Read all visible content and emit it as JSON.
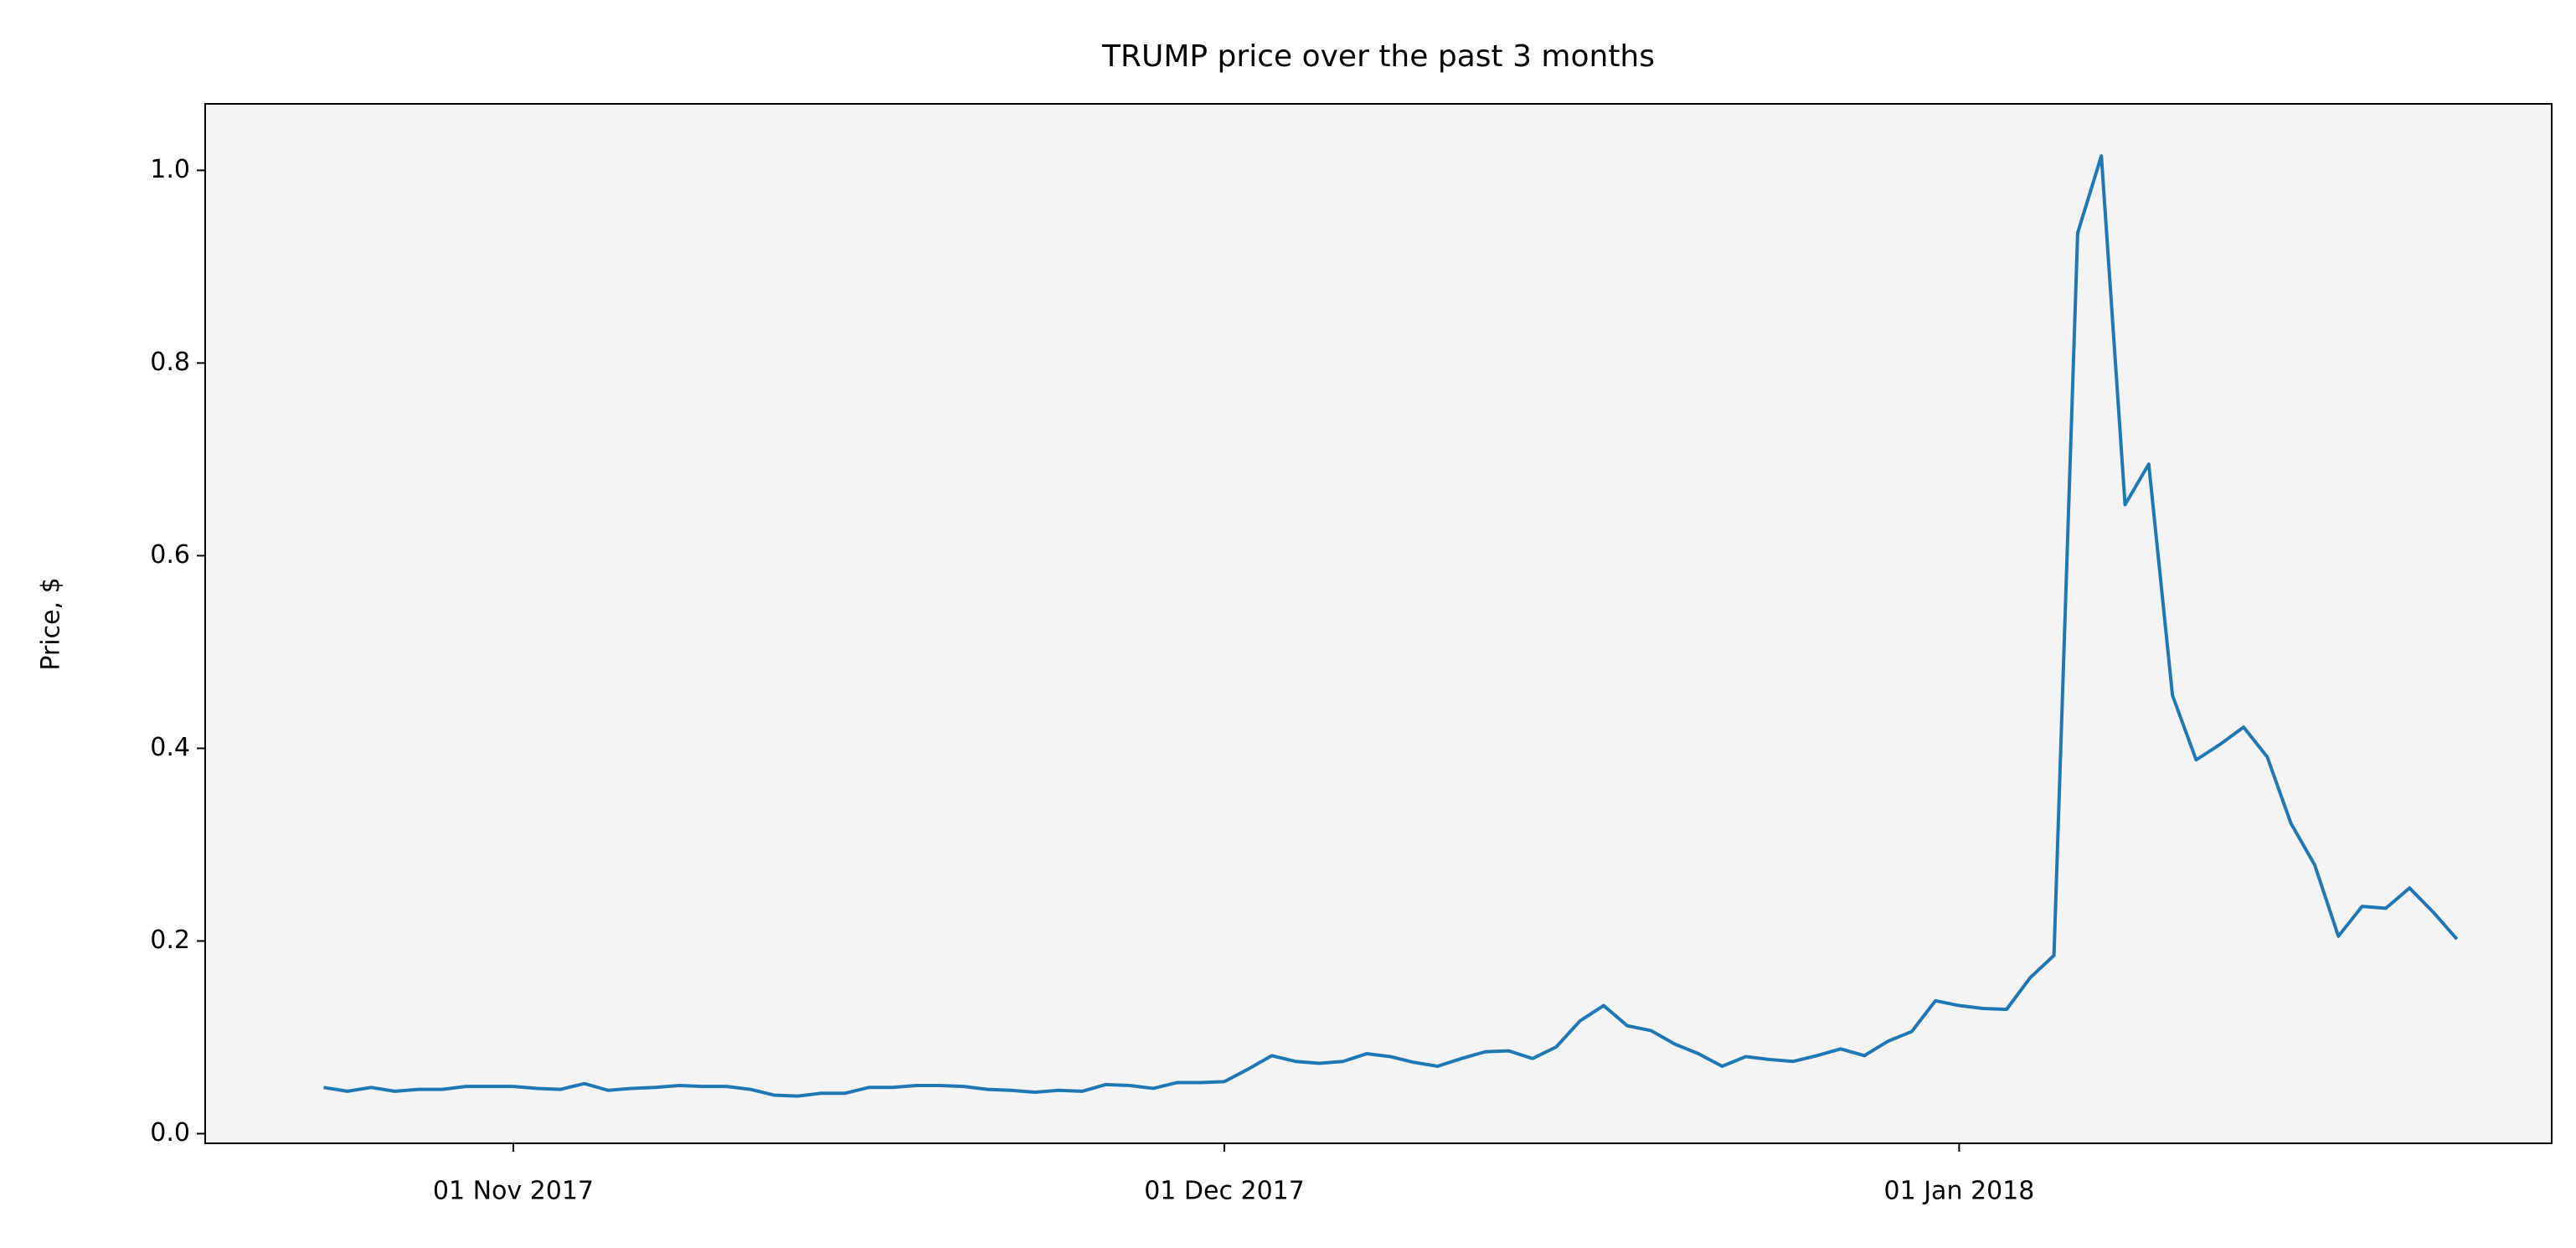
{
  "chart_data": {
    "type": "line",
    "title": "TRUMP price over the past 3 months",
    "ylabel": "Price, $",
    "x": [
      "2017-10-24",
      "2017-10-25",
      "2017-10-26",
      "2017-10-27",
      "2017-10-28",
      "2017-10-29",
      "2017-10-30",
      "2017-10-31",
      "2017-11-01",
      "2017-11-02",
      "2017-11-03",
      "2017-11-04",
      "2017-11-05",
      "2017-11-06",
      "2017-11-07",
      "2017-11-08",
      "2017-11-09",
      "2017-11-10",
      "2017-11-11",
      "2017-11-12",
      "2017-11-13",
      "2017-11-14",
      "2017-11-15",
      "2017-11-16",
      "2017-11-17",
      "2017-11-18",
      "2017-11-19",
      "2017-11-20",
      "2017-11-21",
      "2017-11-22",
      "2017-11-23",
      "2017-11-24",
      "2017-11-25",
      "2017-11-26",
      "2017-11-27",
      "2017-11-28",
      "2017-11-29",
      "2017-11-30",
      "2017-12-01",
      "2017-12-02",
      "2017-12-03",
      "2017-12-04",
      "2017-12-05",
      "2017-12-06",
      "2017-12-07",
      "2017-12-08",
      "2017-12-09",
      "2017-12-10",
      "2017-12-11",
      "2017-12-12",
      "2017-12-13",
      "2017-12-14",
      "2017-12-15",
      "2017-12-16",
      "2017-12-17",
      "2017-12-18",
      "2017-12-19",
      "2017-12-20",
      "2017-12-21",
      "2017-12-22",
      "2017-12-23",
      "2017-12-24",
      "2017-12-25",
      "2017-12-26",
      "2017-12-27",
      "2017-12-28",
      "2017-12-29",
      "2017-12-30",
      "2017-12-31",
      "2018-01-01",
      "2018-01-02",
      "2018-01-03",
      "2018-01-04",
      "2018-01-05",
      "2018-01-06",
      "2018-01-07",
      "2018-01-08",
      "2018-01-09",
      "2018-01-10",
      "2018-01-11",
      "2018-01-12",
      "2018-01-13",
      "2018-01-14",
      "2018-01-15",
      "2018-01-16",
      "2018-01-17",
      "2018-01-18",
      "2018-01-19",
      "2018-01-20",
      "2018-01-21",
      "2018-01-22"
    ],
    "series": [
      {
        "name": "TRUMP",
        "color": "#1f77b4",
        "values": [
          0.048,
          0.044,
          0.048,
          0.044,
          0.046,
          0.046,
          0.049,
          0.049,
          0.049,
          0.047,
          0.046,
          0.052,
          0.045,
          0.047,
          0.048,
          0.05,
          0.049,
          0.049,
          0.046,
          0.04,
          0.039,
          0.042,
          0.042,
          0.048,
          0.048,
          0.05,
          0.05,
          0.049,
          0.046,
          0.045,
          0.043,
          0.045,
          0.044,
          0.051,
          0.05,
          0.047,
          0.053,
          0.053,
          0.054,
          0.067,
          0.081,
          0.075,
          0.073,
          0.075,
          0.083,
          0.08,
          0.074,
          0.07,
          0.078,
          0.085,
          0.086,
          0.078,
          0.09,
          0.117,
          0.133,
          0.112,
          0.107,
          0.093,
          0.083,
          0.07,
          0.08,
          0.077,
          0.075,
          0.081,
          0.088,
          0.081,
          0.096,
          0.106,
          0.138,
          0.133,
          0.13,
          0.129,
          0.162,
          0.185,
          0.935,
          1.015,
          0.653,
          0.695,
          0.455,
          0.388,
          0.404,
          0.422,
          0.391,
          0.322,
          0.279,
          0.205,
          0.236,
          0.234,
          0.255,
          0.23,
          0.202
        ]
      }
    ],
    "xlim": [
      "2017-10-19",
      "2018-01-26"
    ],
    "xticks": [
      {
        "value": "2017-11-01",
        "label": "01 Nov 2017"
      },
      {
        "value": "2017-12-01",
        "label": "01 Dec 2017"
      },
      {
        "value": "2018-01-01",
        "label": "01 Jan 2018"
      }
    ],
    "ylim": [
      -0.01,
      1.069
    ],
    "yticks": [
      {
        "value": 0,
        "label": "0.0"
      },
      {
        "value": 0.2,
        "label": "0.2"
      },
      {
        "value": 0.4,
        "label": "0.4"
      },
      {
        "value": 0.6,
        "label": "0.6"
      },
      {
        "value": 0.8,
        "label": "0.8"
      },
      {
        "value": 1,
        "label": "1.0"
      }
    ],
    "background": "#f4f4f4",
    "grid": false
  }
}
